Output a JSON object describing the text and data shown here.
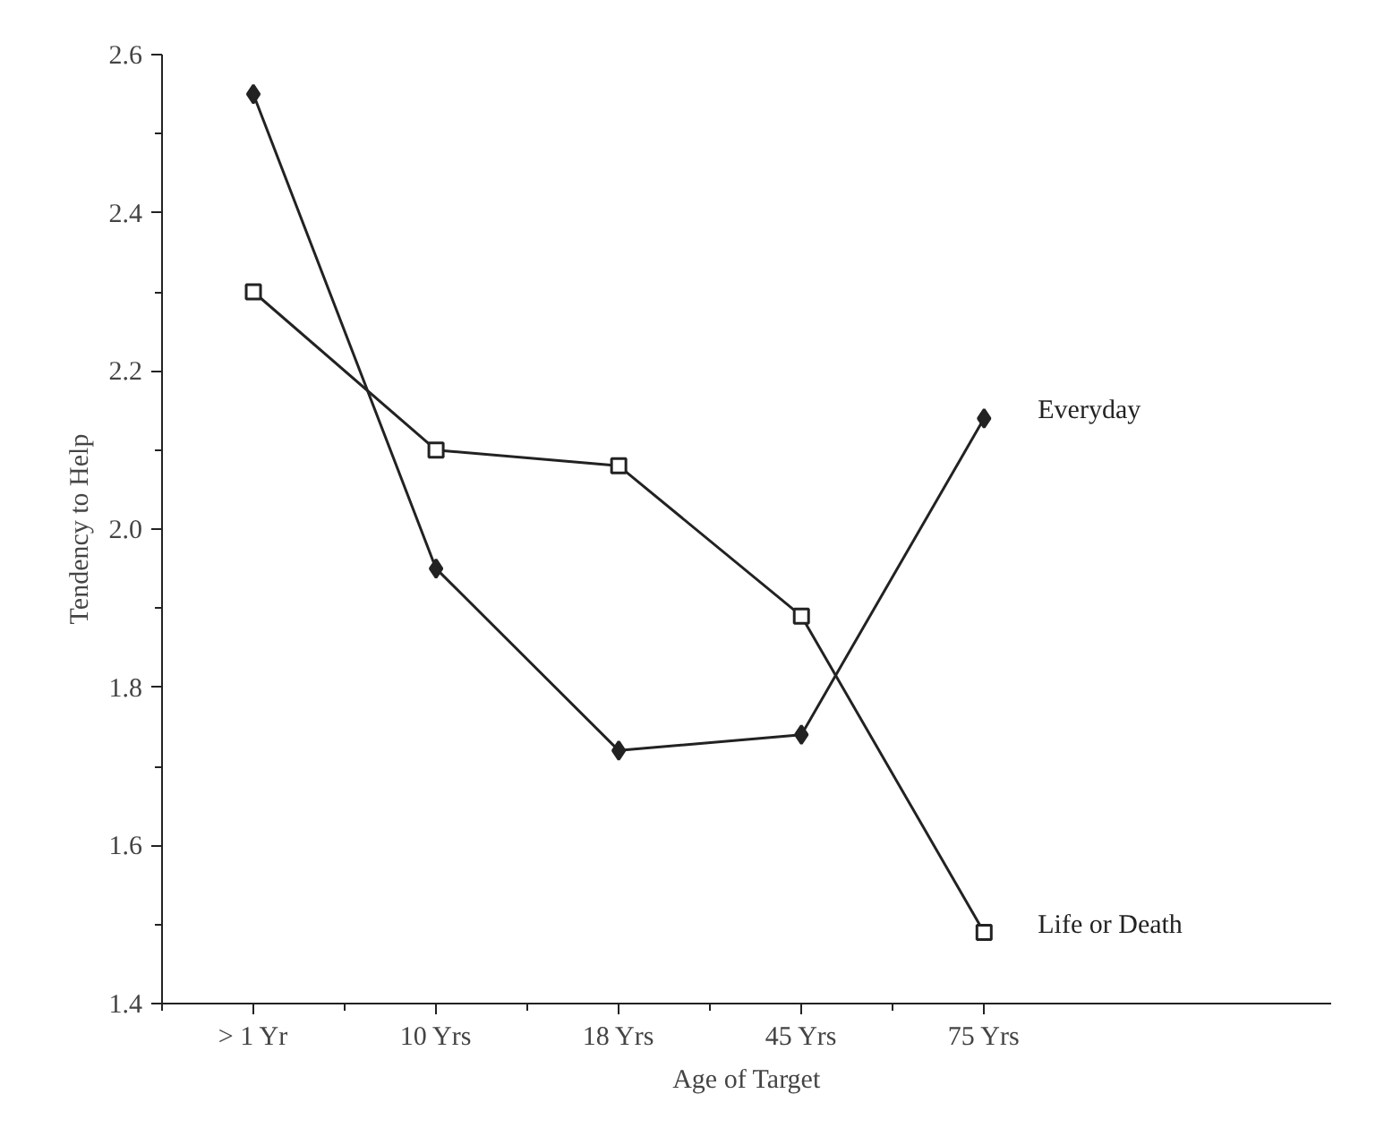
{
  "chart_data": {
    "type": "line",
    "xlabel": "Age of Target",
    "ylabel": "Tendency to Help",
    "categories": [
      "> 1 Yr",
      "10 Yrs",
      "18 Yrs",
      "45 Yrs",
      "75 Yrs"
    ],
    "ylim": [
      1.4,
      2.6
    ],
    "yticks": [
      1.4,
      1.6,
      1.8,
      {
        "value": 2.0,
        "label": "2.0"
      },
      2.2,
      2.4,
      2.6
    ],
    "grid": false,
    "legend": false,
    "series": [
      {
        "name": "Everyday",
        "color": "#222222",
        "marker": "diamond",
        "values": [
          2.55,
          1.95,
          1.72,
          1.74,
          2.14
        ]
      },
      {
        "name": "Life or Death",
        "color": "#222222",
        "marker": "square",
        "values": [
          2.3,
          2.1,
          2.08,
          1.89,
          1.49
        ]
      }
    ]
  }
}
